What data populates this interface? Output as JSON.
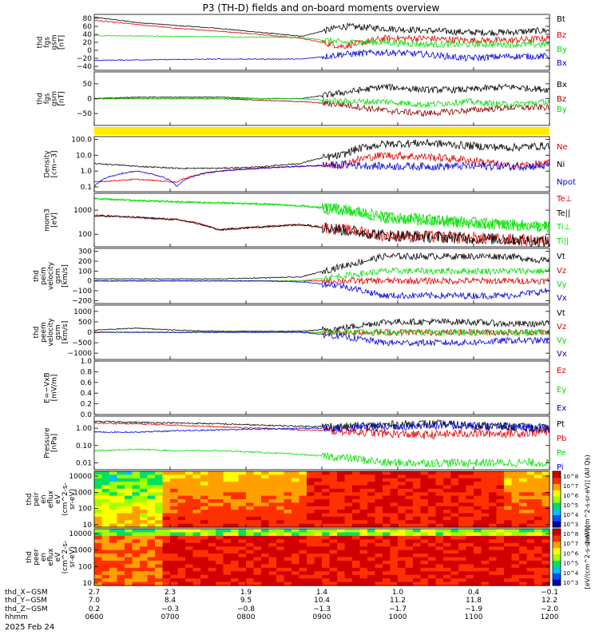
{
  "title": "P3 (TH-D) fields and on-board moments overview",
  "date_label": "2025 Feb 24",
  "colors": {
    "black": "#000000",
    "red": "#e00000",
    "green": "#00e000",
    "blue": "#0000e0",
    "darkred": "#8b0000",
    "yellow": "#ffee00"
  },
  "chart_data": [
    {
      "type": "line",
      "panel": "fgs_gsm_nT",
      "ylabel": [
        "thd",
        "fgs",
        "gsm",
        "[nT]"
      ],
      "y_ticks": [
        "80",
        "60",
        "40",
        "20",
        "0",
        "−20",
        "−40"
      ],
      "ylim": [
        -50,
        90
      ],
      "series": [
        {
          "name": "Bt",
          "color": "black",
          "values": [
            83,
            70,
            62,
            55,
            45,
            35,
            60,
            55,
            50,
            45,
            45,
            50
          ]
        },
        {
          "name": "Bz",
          "color": "red",
          "values": [
            75,
            65,
            55,
            48,
            40,
            30,
            10,
            30,
            30,
            25,
            25,
            30
          ]
        },
        {
          "name": "By",
          "color": "green",
          "values": [
            37,
            36,
            35,
            34,
            33,
            32,
            20,
            20,
            15,
            15,
            15,
            15
          ]
        },
        {
          "name": "Bx",
          "color": "blue",
          "values": [
            -25,
            -24,
            -23,
            -22,
            -22,
            -22,
            -10,
            -5,
            -10,
            -20,
            -15,
            -15
          ]
        }
      ]
    },
    {
      "type": "line",
      "panel": "fgs_gsm_nT_2",
      "ylabel": [
        "thd",
        "fgs",
        "gsm",
        "[nT]"
      ],
      "y_ticks": [
        "50",
        "0",
        "−50"
      ],
      "ylim": [
        -90,
        90
      ],
      "series": [
        {
          "name": "Bx",
          "color": "black",
          "values": [
            0,
            5,
            5,
            5,
            0,
            0,
            20,
            40,
            30,
            30,
            40,
            30
          ]
        },
        {
          "name": "Bz",
          "color": "darkred",
          "values": [
            0,
            0,
            0,
            0,
            -5,
            -10,
            -20,
            -40,
            -50,
            -40,
            -30,
            -30
          ]
        },
        {
          "name": "By",
          "color": "green",
          "values": [
            0,
            0,
            0,
            0,
            0,
            0,
            -10,
            -10,
            -20,
            -10,
            -20,
            -10
          ]
        }
      ]
    },
    {
      "type": "line",
      "panel": "density",
      "ylabel": [
        "Density",
        "[cm−3]"
      ],
      "scale": "log",
      "y_ticks": [
        "100.0",
        "10.0",
        "1.0",
        "0.1"
      ],
      "ylim": [
        0.05,
        150
      ],
      "series": [
        {
          "name": "Ne",
          "color": "red",
          "values": [
            0.2,
            0.3,
            0.2,
            1.0,
            1.5,
            2.0,
            2.5,
            10,
            8,
            5,
            2,
            3
          ]
        },
        {
          "name": "Ni",
          "color": "black",
          "values": [
            3,
            2,
            1.5,
            1.5,
            1.8,
            3,
            10,
            50,
            60,
            40,
            30,
            40
          ]
        },
        {
          "name": "Npot",
          "color": "blue",
          "values": [
            0.1,
            1,
            0.1,
            1,
            1.5,
            2,
            2.5,
            2,
            2,
            2,
            2,
            2
          ]
        }
      ]
    },
    {
      "type": "line",
      "panel": "moments_temperature",
      "ylabel": [
        "mom3",
        "[eV]"
      ],
      "scale": "log",
      "y_ticks": [
        "1000",
        "100"
      ],
      "ylim": [
        30,
        5000
      ],
      "series": [
        {
          "name": "Te⊥",
          "color": "red",
          "values": [
            600,
            500,
            400,
            150,
            200,
            250,
            150,
            90,
            80,
            70,
            60,
            50
          ]
        },
        {
          "name": "Te||",
          "color": "black",
          "values": [
            600,
            500,
            400,
            150,
            200,
            250,
            150,
            90,
            80,
            70,
            60,
            50
          ]
        },
        {
          "name": "Ti⊥",
          "color": "green",
          "values": [
            3000,
            2500,
            2200,
            2000,
            1800,
            1500,
            1000,
            500,
            400,
            300,
            250,
            200
          ]
        },
        {
          "name": "Ti||",
          "color": "green",
          "values": [
            3000,
            2500,
            2200,
            2000,
            1800,
            1500,
            1000,
            500,
            400,
            300,
            250,
            200
          ]
        }
      ]
    },
    {
      "type": "line",
      "panel": "peim_velocity",
      "ylabel": [
        "thd",
        "peim",
        "velocity",
        "gsm",
        "[km/s]"
      ],
      "y_ticks": [
        "300",
        "200",
        "100",
        "0",
        "−100",
        "−200"
      ],
      "ylim": [
        -230,
        330
      ],
      "series": [
        {
          "name": "Vt",
          "color": "black",
          "values": [
            20,
            20,
            20,
            20,
            30,
            40,
            150,
            250,
            250,
            250,
            250,
            200
          ]
        },
        {
          "name": "Vz",
          "color": "red",
          "values": [
            0,
            0,
            0,
            0,
            0,
            0,
            0,
            0,
            0,
            0,
            0,
            0
          ]
        },
        {
          "name": "Vy",
          "color": "green",
          "values": [
            0,
            0,
            0,
            0,
            0,
            0,
            50,
            100,
            100,
            100,
            100,
            100
          ]
        },
        {
          "name": "Vx",
          "color": "blue",
          "values": [
            0,
            0,
            0,
            0,
            0,
            -10,
            -50,
            -150,
            -150,
            -150,
            -150,
            -100
          ]
        }
      ]
    },
    {
      "type": "line",
      "panel": "peem_velocity",
      "ylabel": [
        "thd",
        "peem",
        "velocity",
        "gsm",
        "[km/s]"
      ],
      "y_ticks": [
        "1000",
        "500",
        "0",
        "−500",
        "−1000"
      ],
      "ylim": [
        -1300,
        1300
      ],
      "series": [
        {
          "name": "Vt",
          "color": "black",
          "values": [
            100,
            200,
            100,
            50,
            50,
            50,
            200,
            500,
            500,
            500,
            400,
            400
          ]
        },
        {
          "name": "Vz",
          "color": "red",
          "values": [
            0,
            0,
            0,
            0,
            0,
            0,
            0,
            0,
            0,
            0,
            0,
            0
          ]
        },
        {
          "name": "Vy",
          "color": "green",
          "values": [
            0,
            0,
            0,
            0,
            0,
            0,
            0,
            0,
            0,
            0,
            0,
            0
          ]
        },
        {
          "name": "Vx",
          "color": "blue",
          "values": [
            0,
            0,
            0,
            0,
            0,
            0,
            -200,
            -500,
            -500,
            -500,
            -400,
            -400
          ]
        }
      ]
    },
    {
      "type": "line",
      "panel": "electric_field",
      "ylabel": [
        "E=−VxB",
        "[mV/m]"
      ],
      "y_ticks": [
        "1.0",
        "0.8",
        "0.6",
        "0.4",
        "0.2",
        "0.0"
      ],
      "ylim": [
        0,
        1
      ],
      "series": [
        {
          "name": "Ez",
          "color": "red",
          "values": []
        },
        {
          "name": "Ey",
          "color": "green",
          "values": []
        },
        {
          "name": "Ex",
          "color": "blue",
          "values": []
        }
      ]
    },
    {
      "type": "line",
      "panel": "pressure",
      "ylabel": [
        "Pressure",
        "[nPa]"
      ],
      "scale": "log",
      "y_ticks": [
        "1.00",
        "0.10",
        "0.01"
      ],
      "ylim": [
        0.004,
        5
      ],
      "series": [
        {
          "name": "Pt",
          "color": "black",
          "values": [
            2.5,
            2.2,
            2.0,
            1.8,
            1.5,
            1.3,
            1.2,
            1.5,
            1.8,
            1.5,
            1.2,
            1.0
          ]
        },
        {
          "name": "Pb",
          "color": "red",
          "values": [
            2.0,
            1.8,
            1.5,
            1.2,
            1.0,
            0.8,
            0.7,
            0.5,
            0.4,
            0.5,
            0.5,
            0.6
          ]
        },
        {
          "name": "Pe",
          "color": "green",
          "values": [
            0.05,
            0.06,
            0.05,
            0.05,
            0.04,
            0.03,
            0.02,
            0.01,
            0.01,
            0.01,
            0.01,
            0.01
          ]
        },
        {
          "name": "Pi",
          "color": "blue",
          "values": [
            0.6,
            0.6,
            0.7,
            0.8,
            0.9,
            1.0,
            1.0,
            1.2,
            1.5,
            1.4,
            1.2,
            1.0
          ]
        }
      ]
    },
    {
      "type": "heatmap",
      "panel": "peir_en_eflux",
      "ylabel": [
        "thd",
        "peir",
        "en",
        "eflux",
        "eV",
        "(cm^2-s-",
        "sr-eV)"
      ],
      "scale": "log",
      "y_ticks": [
        "10000",
        "1000",
        "100",
        "10"
      ],
      "ylim": [
        7,
        20000
      ],
      "colorbar_ticks": [
        "10^8",
        "10^7",
        "10^6",
        "10^5",
        "10^4",
        "10^3"
      ],
      "colorbar_label": "[eV/(cm^2-s-sr-eV)] (All Qs)"
    },
    {
      "type": "heatmap",
      "panel": "peer_en_eflux",
      "ylabel": [
        "thd",
        "peer",
        "en",
        "eflux",
        "eV",
        "(cm^2-s-",
        "sr-eV)"
      ],
      "scale": "log",
      "y_ticks": [
        "10000",
        "1000",
        "100",
        "10"
      ],
      "ylim": [
        7,
        20000
      ],
      "colorbar_ticks": [
        "10^8",
        "10^7",
        "10^6",
        "10^5",
        "10^4",
        "10^3"
      ],
      "colorbar_label": "[eV/(cm^2-s-sr-eV)]"
    }
  ],
  "x_axis": {
    "rows": [
      {
        "label": "thd_X−GSM",
        "values": [
          "2.7",
          "2.3",
          "1.9",
          "1.4",
          "1.0",
          "0.4",
          "−0.1"
        ]
      },
      {
        "label": "thd_Y−GSM",
        "values": [
          "7.0",
          "8.4",
          "9.5",
          "10.4",
          "11.2",
          "11.8",
          "12.2"
        ]
      },
      {
        "label": "thd_Z−GSM",
        "values": [
          "0.2",
          "−0.3",
          "−0.8",
          "−1.3",
          "−1.7",
          "−1.9",
          "−2.0"
        ]
      },
      {
        "label": "hhmm",
        "values": [
          "0600",
          "0700",
          "0800",
          "0900",
          "1000",
          "1100",
          "1200"
        ]
      }
    ]
  }
}
